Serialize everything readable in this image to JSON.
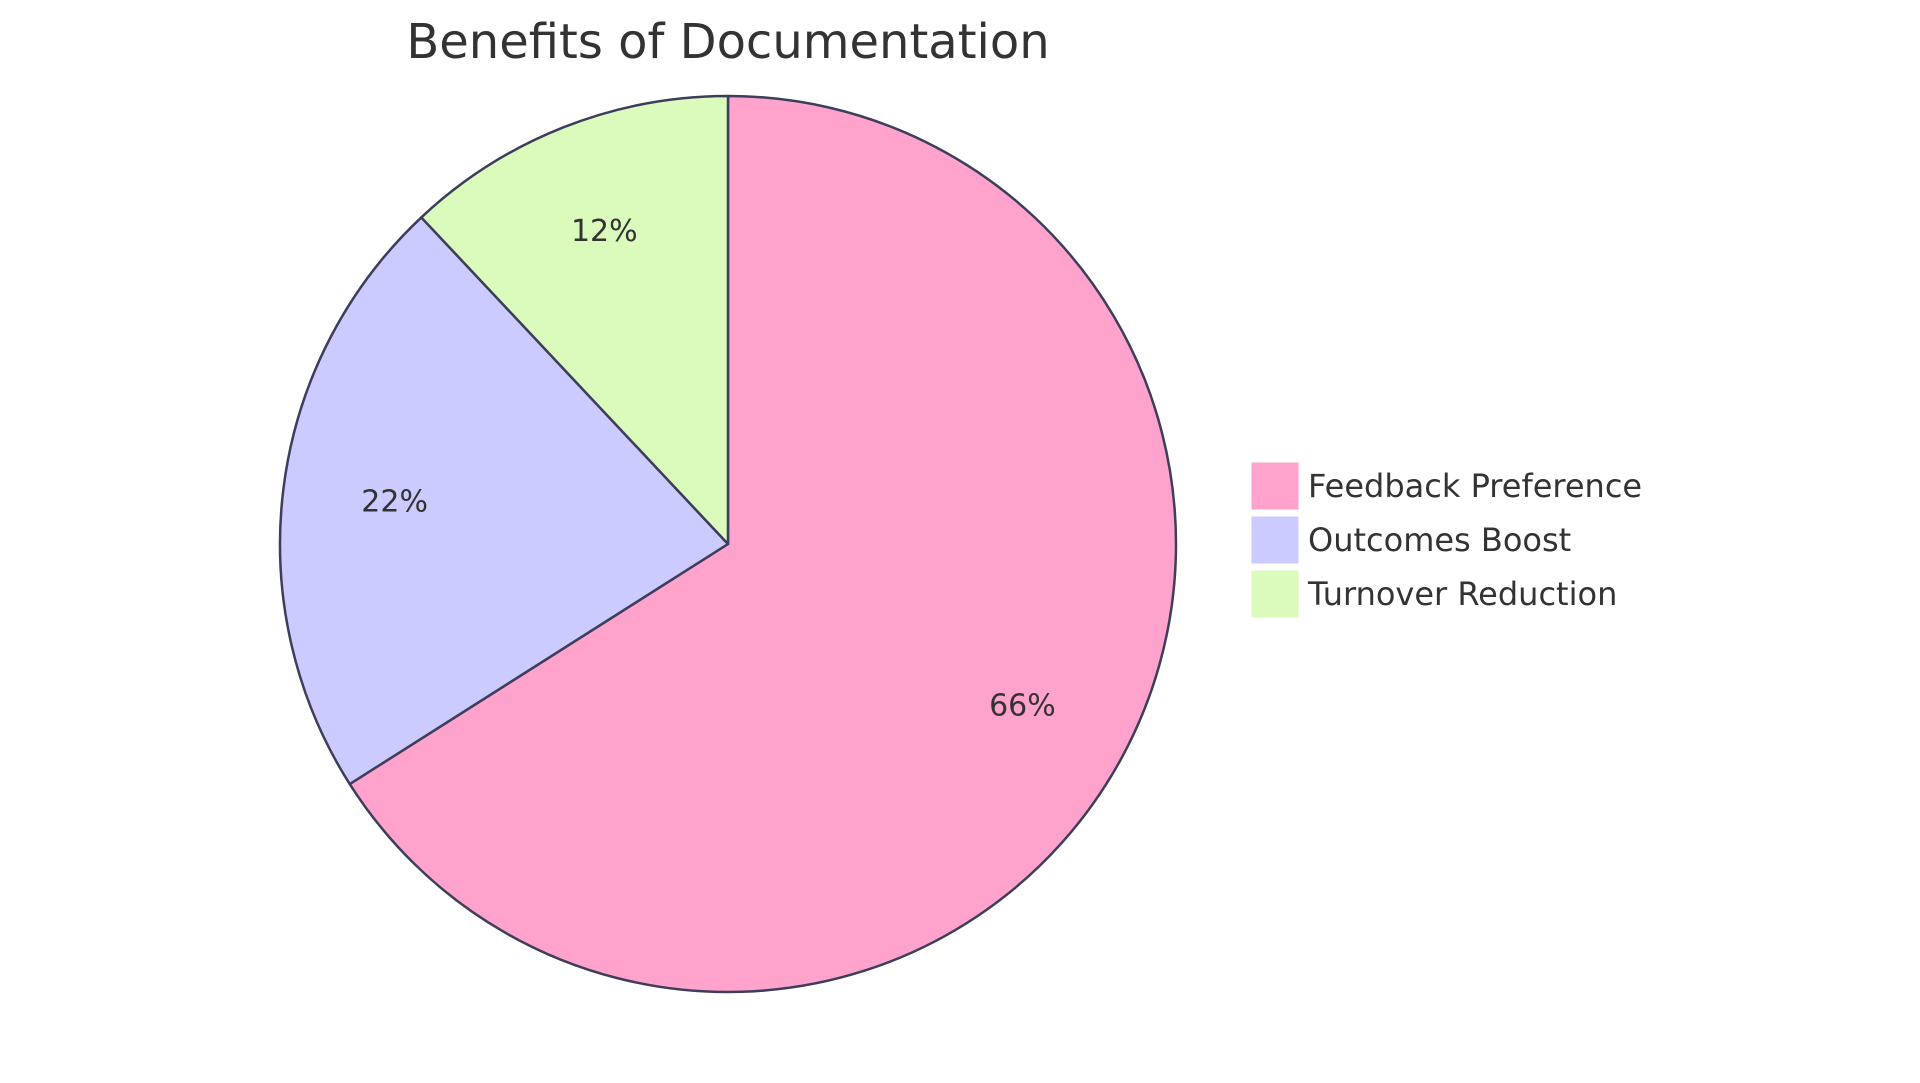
{
  "chart_data": {
    "type": "pie",
    "title": "Benefits of Documentation",
    "slices": [
      {
        "name": "Feedback Preference",
        "value": 66,
        "label": "66%",
        "color": "#FFA3CD"
      },
      {
        "name": "Outcomes Boost",
        "value": 22,
        "label": "22%",
        "color": "#CBCBFF"
      },
      {
        "name": "Turnover Reduction",
        "value": 12,
        "label": "12%",
        "color": "#DAFBBB"
      }
    ],
    "start_angle_deg": 0,
    "direction": "clockwise",
    "stroke_color": "#3D3D5C",
    "legend_position": "right"
  }
}
